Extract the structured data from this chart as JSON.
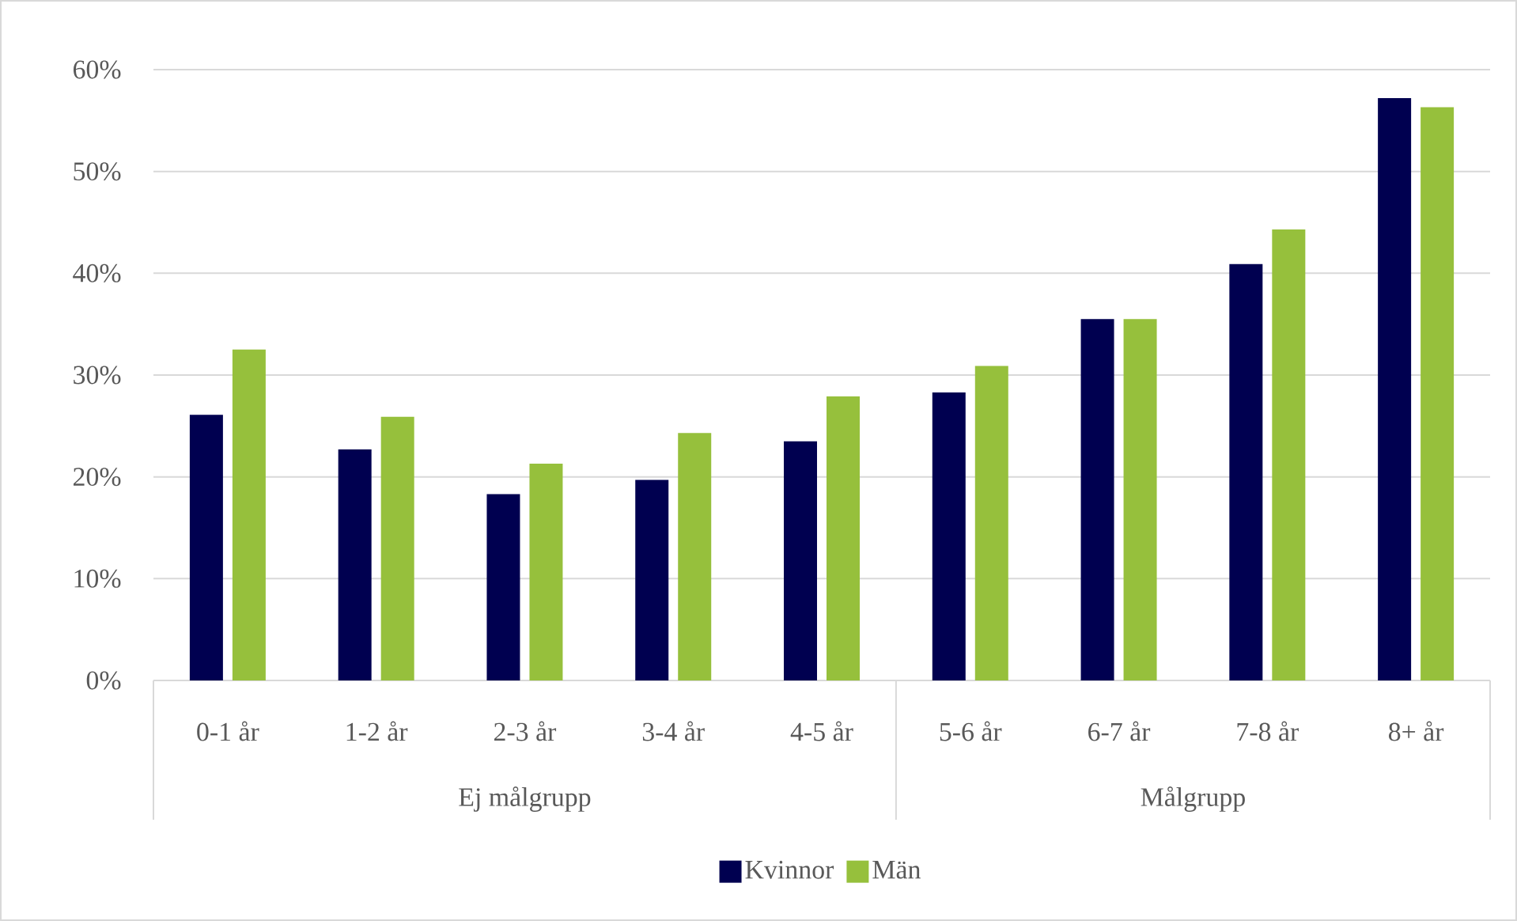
{
  "chart_data": {
    "type": "bar",
    "categories": [
      "0-1 år",
      "1-2 år",
      "2-3 år",
      "3-4 år",
      "4-5 år",
      "5-6 år",
      "6-7 år",
      "7-8 år",
      "8+ år"
    ],
    "series": [
      {
        "name": "Kvinnor",
        "color": "#000050",
        "values": [
          26.1,
          22.7,
          18.3,
          19.7,
          23.5,
          28.3,
          35.5,
          40.9,
          57.2
        ]
      },
      {
        "name": "Män",
        "color": "#96c03c",
        "values": [
          32.5,
          25.9,
          21.3,
          24.3,
          27.9,
          30.9,
          35.5,
          44.3,
          56.3
        ]
      }
    ],
    "ylim": [
      0,
      60
    ],
    "yticks": [
      {
        "value": 0,
        "label": "0%"
      },
      {
        "value": 10,
        "label": "10%"
      },
      {
        "value": 20,
        "label": "20%"
      },
      {
        "value": 30,
        "label": "30%"
      },
      {
        "value": 40,
        "label": "40%"
      },
      {
        "value": 50,
        "label": "50%"
      },
      {
        "value": 60,
        "label": "60%"
      }
    ],
    "annotations": [
      "Ej målgrupp",
      "Målgrupp"
    ],
    "grid": true,
    "legend": "bottom"
  }
}
